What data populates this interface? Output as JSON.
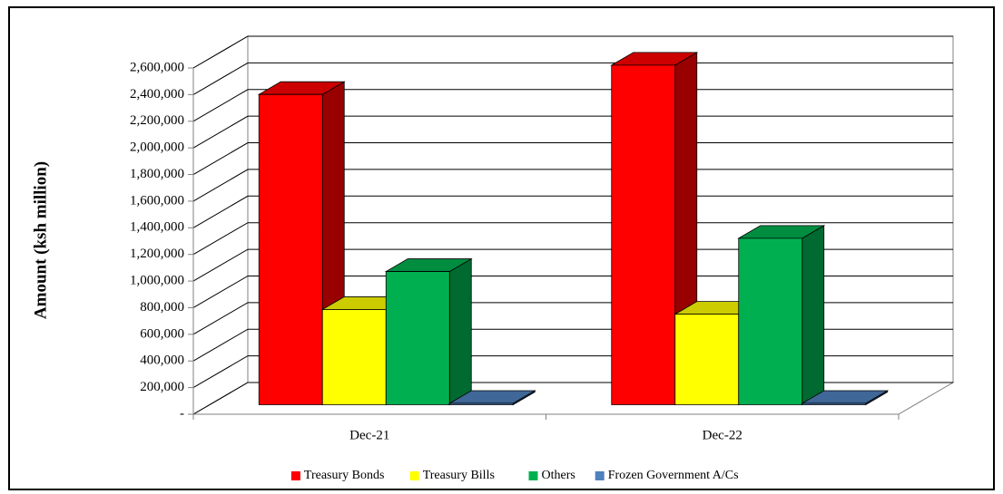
{
  "chart_data": {
    "type": "bar",
    "y_label": "Amount (ksh million)",
    "categories": [
      "Dec-21",
      "Dec-22"
    ],
    "series": [
      {
        "name": "Treasury Bonds",
        "color": "#ff0000",
        "values": [
          2330000,
          2550000
        ]
      },
      {
        "name": "Treasury Bills",
        "color": "#ffff00",
        "values": [
          715000,
          680000
        ]
      },
      {
        "name": "Others",
        "color": "#00b050",
        "values": [
          1000000,
          1250000
        ]
      },
      {
        "name": "Frozen Government A/Cs",
        "color": "#4f81bd",
        "values": [
          10000,
          10000
        ]
      }
    ],
    "ylim": [
      0,
      2600000
    ],
    "yticks": [
      {
        "value": 0,
        "label": "-"
      },
      {
        "value": 200000,
        "label": "200,000"
      },
      {
        "value": 400000,
        "label": "400,000"
      },
      {
        "value": 600000,
        "label": "600,000"
      },
      {
        "value": 800000,
        "label": "800,000"
      },
      {
        "value": 1000000,
        "label": "1,000,000"
      },
      {
        "value": 1200000,
        "label": "1,200,000"
      },
      {
        "value": 1400000,
        "label": "1,400,000"
      },
      {
        "value": 1600000,
        "label": "1,600,000"
      },
      {
        "value": 1800000,
        "label": "1,800,000"
      },
      {
        "value": 2000000,
        "label": "2,000,000"
      },
      {
        "value": 2200000,
        "label": "2,200,000"
      },
      {
        "value": 2400000,
        "label": "2,400,000"
      },
      {
        "value": 2600000,
        "label": "2,600,000"
      }
    ],
    "grid": true,
    "legend": "bottom"
  }
}
